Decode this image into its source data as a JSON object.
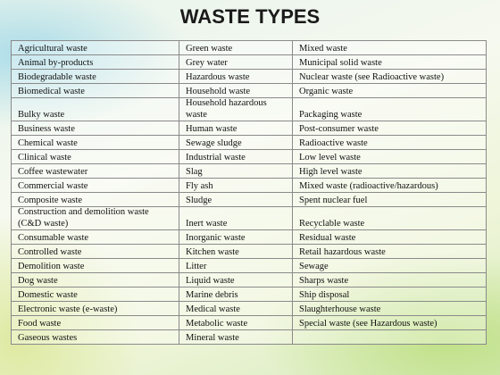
{
  "header": {
    "title": "WASTE TYPES"
  },
  "table": {
    "rows": [
      [
        "Agricultural waste",
        "Green waste",
        "Mixed waste"
      ],
      [
        "Animal by-products",
        "Grey water",
        "Municipal solid waste"
      ],
      [
        "Biodegradable waste",
        "Hazardous waste",
        "Nuclear waste (see Radioactive waste)"
      ],
      [
        "Biomedical waste",
        "Household waste",
        "Organic waste"
      ],
      [
        "Bulky waste",
        "Household hazardous waste",
        "Packaging waste"
      ],
      [
        "Business waste",
        "Human waste",
        "Post-consumer waste"
      ],
      [
        "Chemical waste",
        "Sewage sludge",
        "Radioactive waste"
      ],
      [
        "Clinical waste",
        "Industrial waste",
        "Low level waste"
      ],
      [
        "Coffee wastewater",
        "Slag",
        "High level waste"
      ],
      [
        "Commercial waste",
        "Fly ash",
        "Mixed waste (radioactive/hazardous)"
      ],
      [
        "Composite waste",
        "Sludge",
        "Spent nuclear fuel"
      ],
      [
        "Construction and demolition waste (C&D waste)",
        "Inert waste",
        "Recyclable waste"
      ],
      [
        "Consumable waste",
        "Inorganic waste",
        "Residual waste"
      ],
      [
        "Controlled waste",
        "Kitchen waste",
        "Retail hazardous waste"
      ],
      [
        "Demolition waste",
        "Litter",
        "Sewage"
      ],
      [
        "Dog waste",
        "Liquid waste",
        "Sharps waste"
      ],
      [
        "Domestic waste",
        "Marine debris",
        "Ship disposal"
      ],
      [
        "Electronic waste (e-waste)",
        "Medical waste",
        "Slaughterhouse waste"
      ],
      [
        "Food waste",
        "Metabolic waste",
        "Special waste (see Hazardous waste)"
      ],
      [
        "Gaseous wastes",
        "Mineral waste"
      ]
    ]
  }
}
